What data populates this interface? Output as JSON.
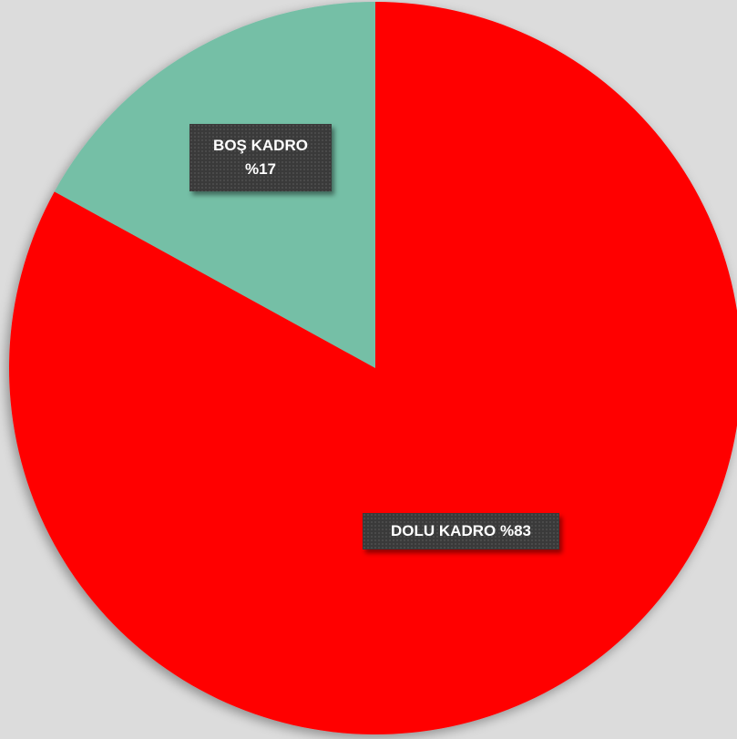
{
  "chart_data": {
    "type": "pie",
    "slices": [
      {
        "label": "BOŞ KADRO",
        "value": 17,
        "display": "%17",
        "color": "#74bfa6"
      },
      {
        "label": "DOLU KADRO",
        "value": 83,
        "display": "%83",
        "color": "#ff0000"
      }
    ],
    "start": "top",
    "direction": "counterclockwise-from-top-for-first-slice",
    "title": "",
    "legend": "none"
  },
  "labels": {
    "bos": {
      "name": "BOŞ KADRO",
      "percent": "%17"
    },
    "dolu": {
      "full": "DOLU KADRO %83"
    }
  }
}
